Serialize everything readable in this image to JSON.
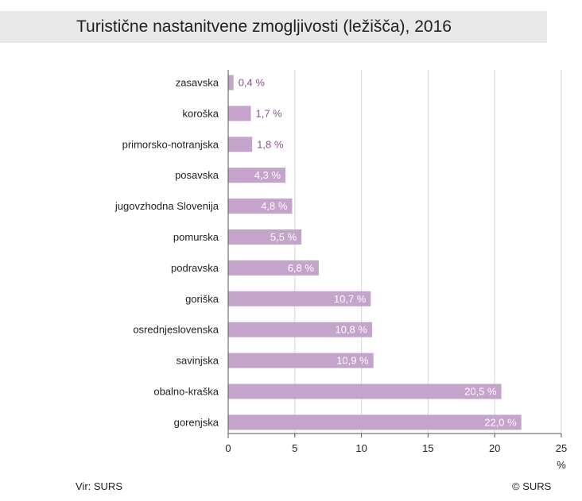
{
  "chart_data": {
    "type": "bar",
    "orientation": "horizontal",
    "title": "Turistične nastanitvene zmogljivosti (ležišča), 2016",
    "categories": [
      "zasavska",
      "koroška",
      "primorsko-notranjska",
      "posavska",
      "jugovzhodna Slovenija",
      "pomurska",
      "podravska",
      "goriška",
      "osrednjeslovenska",
      "savinjska",
      "obalno-kraška",
      "gorenjska"
    ],
    "values": [
      0.4,
      1.7,
      1.8,
      4.3,
      4.8,
      5.5,
      6.8,
      10.7,
      10.8,
      10.9,
      20.5,
      22.0
    ],
    "data_labels": [
      "0,4 %",
      "1,7 %",
      "1,8 %",
      "4,3 %",
      "4,8 %",
      "5,5 %",
      "6,8 %",
      "10,7 %",
      "10,8 %",
      "10,9 %",
      "20,5 %",
      "22,0 %"
    ],
    "xlim": [
      0,
      25
    ],
    "xticks": [
      0,
      5,
      10,
      15,
      20,
      25
    ],
    "xtick_labels": [
      "0",
      "5",
      "10",
      "15",
      "20",
      "25"
    ],
    "xunit": "%",
    "grid": true,
    "legend": "none",
    "colors": {
      "bar": "#c4a4ca",
      "inside_label": "#ffffff",
      "outside_label": "#8e4f93",
      "grid": "#d6d6d6",
      "axis": "#555555"
    }
  },
  "footer": {
    "source": "Vir: SURS",
    "copyright": "© SURS"
  }
}
